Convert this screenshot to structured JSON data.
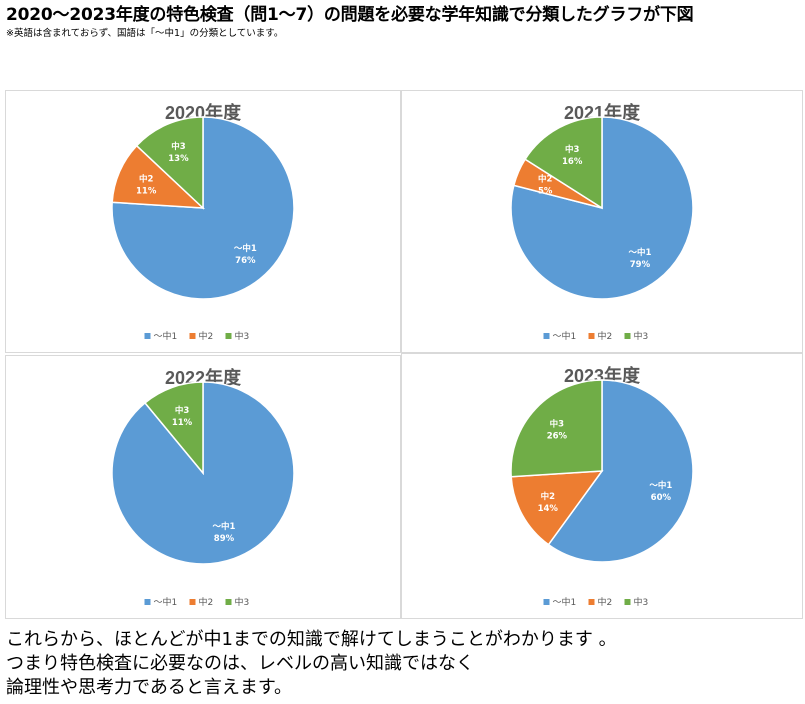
{
  "header": {
    "title": "2020～2023年度の特色検査（問1～7）の問題を必要な学年知識で分類したグラフが下図",
    "note": "※英語は含まれておらず、国語は「～中1」の分類としています。"
  },
  "colors": {
    "～中1": "#5b9bd5",
    "中2": "#ed7d31",
    "中3": "#70ad47"
  },
  "chart_data": [
    {
      "type": "pie",
      "title": "2020年度",
      "categories": [
        "～中1",
        "中2",
        "中3"
      ],
      "values": [
        76,
        11,
        13
      ],
      "value_labels": [
        "76%",
        "11%",
        "13%"
      ],
      "legend": "bottom"
    },
    {
      "type": "pie",
      "title": "2021年度",
      "categories": [
        "～中1",
        "中2",
        "中3"
      ],
      "values": [
        79,
        5,
        16
      ],
      "value_labels": [
        "79%",
        "5%",
        "16%"
      ],
      "legend": "bottom"
    },
    {
      "type": "pie",
      "title": "2022年度",
      "categories": [
        "～中1",
        "中3"
      ],
      "values": [
        89,
        11
      ],
      "value_labels": [
        "89%",
        "11%"
      ],
      "legend_categories": [
        "～中1",
        "中2",
        "中3"
      ],
      "legend": "bottom"
    },
    {
      "type": "pie",
      "title": "2023年度",
      "categories": [
        "～中1",
        "中2",
        "中3"
      ],
      "values": [
        60,
        14,
        26
      ],
      "value_labels": [
        "60%",
        "14%",
        "26%"
      ],
      "legend": "bottom"
    }
  ],
  "conclusion": {
    "line1": "これらから、ほとんどが中1までの知識で解けてしまうことがわかります 。",
    "line2": "つまり特色検査に必要なのは、レベルの高い知識ではなく",
    "line3": "論理性や思考力であると言えます。"
  }
}
